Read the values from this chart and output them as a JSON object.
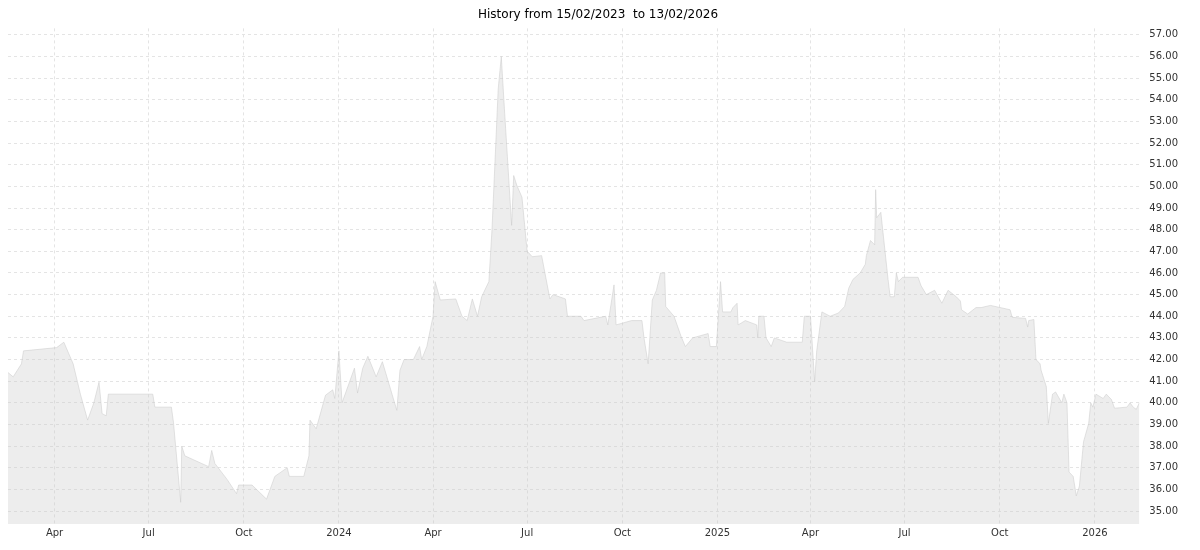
{
  "chart_data": {
    "type": "area",
    "title": "History from 15/02/2023  to 13/02/2026",
    "x": [
      "2023-02-15",
      "2023-02-20",
      "2023-02-28",
      "2023-03-02",
      "2023-04-03",
      "2023-04-10",
      "2023-04-19",
      "2023-04-26",
      "2023-05-03",
      "2023-05-09",
      "2023-05-14",
      "2023-05-17",
      "2023-05-21",
      "2023-05-23",
      "2023-07-05",
      "2023-07-07",
      "2023-07-23",
      "2023-07-25",
      "2023-08-01",
      "2023-08-02",
      "2023-08-05",
      "2023-08-28",
      "2023-08-31",
      "2023-09-03",
      "2023-09-15",
      "2023-09-24",
      "2023-09-26",
      "2023-10-09",
      "2023-10-23",
      "2023-10-31",
      "2023-11-12",
      "2023-11-14",
      "2023-11-28",
      "2023-12-03",
      "2023-12-04",
      "2023-12-10",
      "2023-12-19",
      "2023-12-26",
      "2023-12-28",
      "2024-01-01",
      "2024-01-04",
      "2024-01-16",
      "2024-01-19",
      "2024-01-24",
      "2024-01-29",
      "2024-02-06",
      "2024-02-12",
      "2024-02-26",
      "2024-02-29",
      "2024-03-04",
      "2024-03-13",
      "2024-03-19",
      "2024-03-21",
      "2024-03-26",
      "2024-04-01",
      "2024-04-03",
      "2024-04-08",
      "2024-04-23",
      "2024-04-29",
      "2024-05-04",
      "2024-05-09",
      "2024-05-14",
      "2024-05-18",
      "2024-05-25",
      "2024-05-28",
      "2024-06-03",
      "2024-06-06",
      "2024-06-09",
      "2024-06-16",
      "2024-06-18",
      "2024-06-21",
      "2024-06-26",
      "2024-07-01",
      "2024-07-06",
      "2024-07-15",
      "2024-07-23",
      "2024-07-26",
      "2024-08-07",
      "2024-08-09",
      "2024-08-22",
      "2024-08-25",
      "2024-09-15",
      "2024-09-17",
      "2024-09-23",
      "2024-09-25",
      "2024-10-10",
      "2024-10-20",
      "2024-10-22",
      "2024-10-26",
      "2024-10-30",
      "2024-11-03",
      "2024-11-07",
      "2024-11-11",
      "2024-11-12",
      "2024-11-20",
      "2024-11-27",
      "2024-12-01",
      "2024-12-08",
      "2024-12-23",
      "2024-12-25",
      "2024-12-31",
      "2025-01-04",
      "2025-01-06",
      "2025-01-14",
      "2025-01-16",
      "2025-01-20",
      "2025-01-21",
      "2025-01-28",
      "2025-02-08",
      "2025-02-09",
      "2025-02-10",
      "2025-02-15",
      "2025-02-17",
      "2025-02-22",
      "2025-02-25",
      "2025-03-09",
      "2025-03-24",
      "2025-03-26",
      "2025-04-01",
      "2025-04-05",
      "2025-04-07",
      "2025-04-12",
      "2025-04-20",
      "2025-04-28",
      "2025-05-04",
      "2025-05-08",
      "2025-05-12",
      "2025-05-19",
      "2025-05-24",
      "2025-05-25",
      "2025-05-29",
      "2025-06-02",
      "2025-06-03",
      "2025-06-04",
      "2025-06-08",
      "2025-06-15",
      "2025-06-17",
      "2025-06-21",
      "2025-06-23",
      "2025-06-25",
      "2025-06-29",
      "2025-07-14",
      "2025-07-17",
      "2025-07-22",
      "2025-07-30",
      "2025-08-06",
      "2025-08-12",
      "2025-08-20",
      "2025-08-24",
      "2025-08-25",
      "2025-08-31",
      "2025-09-08",
      "2025-09-13",
      "2025-09-22",
      "2025-10-11",
      "2025-10-13",
      "2025-10-26",
      "2025-10-28",
      "2025-10-29",
      "2025-11-03",
      "2025-11-05",
      "2025-11-09",
      "2025-11-10",
      "2025-11-15",
      "2025-11-17",
      "2025-11-21",
      "2025-11-24",
      "2025-11-30",
      "2025-12-02",
      "2025-12-05",
      "2025-12-07",
      "2025-12-11",
      "2025-12-14",
      "2025-12-17",
      "2025-12-21",
      "2025-12-26",
      "2025-12-28",
      "2025-12-30",
      "2026-01-02",
      "2026-01-09",
      "2026-01-12",
      "2026-01-17",
      "2026-01-20",
      "2026-02-01",
      "2026-02-04",
      "2026-02-07",
      "2026-02-10",
      "2026-02-13"
    ],
    "values": [
      41.4,
      41.2,
      41.8,
      42.4,
      42.55,
      42.8,
      41.8,
      40.4,
      39.2,
      40.0,
      40.95,
      39.5,
      39.4,
      40.4,
      40.4,
      39.8,
      39.8,
      39.1,
      35.4,
      38.0,
      37.55,
      37.05,
      37.8,
      37.2,
      36.45,
      35.8,
      36.2,
      36.2,
      35.55,
      36.6,
      37.0,
      36.6,
      36.6,
      37.55,
      39.2,
      38.8,
      40.35,
      40.6,
      40.2,
      42.4,
      40.0,
      41.6,
      40.45,
      41.6,
      42.15,
      41.2,
      41.9,
      39.65,
      41.5,
      42.0,
      42.0,
      42.6,
      42.0,
      42.6,
      44.0,
      45.6,
      44.75,
      44.8,
      44.0,
      43.8,
      44.8,
      44.0,
      44.9,
      45.6,
      48.0,
      54.5,
      56.0,
      53.6,
      48.2,
      50.5,
      50.05,
      49.5,
      47.0,
      46.75,
      46.8,
      44.8,
      45.0,
      44.8,
      44.0,
      44.0,
      43.8,
      44.0,
      43.6,
      45.45,
      43.6,
      43.8,
      43.8,
      43.0,
      41.8,
      44.75,
      45.2,
      46.0,
      46.0,
      44.45,
      44.0,
      43.05,
      42.6,
      43.0,
      43.2,
      42.6,
      42.6,
      45.6,
      44.2,
      44.2,
      44.4,
      44.6,
      43.6,
      43.8,
      43.6,
      43.0,
      44.0,
      44.0,
      43.0,
      42.6,
      43.0,
      42.8,
      42.8,
      44.0,
      44.0,
      40.97,
      42.4,
      44.2,
      44.0,
      44.15,
      44.45,
      45.3,
      45.7,
      46.0,
      46.4,
      46.8,
      47.5,
      47.3,
      49.85,
      48.55,
      48.8,
      45.7,
      44.9,
      44.9,
      46.0,
      45.6,
      45.8,
      45.8,
      45.4,
      45.0,
      45.2,
      44.6,
      45.2,
      44.9,
      44.7,
      44.3,
      44.1,
      44.4,
      44.4,
      44.5,
      44.3,
      43.95,
      43.9,
      43.5,
      43.8,
      43.85,
      42.0,
      41.8,
      41.5,
      40.75,
      39.05,
      40.4,
      40.5,
      40.0,
      40.4,
      40.0,
      36.8,
      36.6,
      35.7,
      36.15,
      38.2,
      39.05,
      40.0,
      39.8,
      40.4,
      40.2,
      40.4,
      40.15,
      39.75,
      39.8,
      40.0,
      39.8,
      39.7,
      40.0
    ],
    "color": "#c8c8c8",
    "xlim": [
      "2023-02-15",
      "2026-02-13"
    ],
    "xticks": [
      {
        "value": "2023-04-01",
        "label": "Apr"
      },
      {
        "value": "2023-07-01",
        "label": "Jul"
      },
      {
        "value": "2023-10-01",
        "label": "Oct"
      },
      {
        "value": "2024-01-01",
        "label": "2024"
      },
      {
        "value": "2024-04-01",
        "label": "Apr"
      },
      {
        "value": "2024-07-01",
        "label": "Jul"
      },
      {
        "value": "2024-10-01",
        "label": "Oct"
      },
      {
        "value": "2025-01-01",
        "label": "2025"
      },
      {
        "value": "2025-04-01",
        "label": "Apr"
      },
      {
        "value": "2025-07-01",
        "label": "Jul"
      },
      {
        "value": "2025-10-01",
        "label": "Oct"
      },
      {
        "value": "2026-01-01",
        "label": "2026"
      }
    ],
    "ylim": [
      34.4,
      57.3
    ],
    "yticks": [
      {
        "value": 35,
        "label": "35.00"
      },
      {
        "value": 36,
        "label": "36.00"
      },
      {
        "value": 37,
        "label": "37.00"
      },
      {
        "value": 38,
        "label": "38.00"
      },
      {
        "value": 39,
        "label": "39.00"
      },
      {
        "value": 40,
        "label": "40.00"
      },
      {
        "value": 41,
        "label": "41.00"
      },
      {
        "value": 42,
        "label": "42.00"
      },
      {
        "value": 43,
        "label": "43.00"
      },
      {
        "value": 44,
        "label": "44.00"
      },
      {
        "value": 45,
        "label": "45.00"
      },
      {
        "value": 46,
        "label": "46.00"
      },
      {
        "value": 47,
        "label": "47.00"
      },
      {
        "value": 48,
        "label": "48.00"
      },
      {
        "value": 49,
        "label": "49.00"
      },
      {
        "value": 50,
        "label": "50.00"
      },
      {
        "value": 51,
        "label": "51.00"
      },
      {
        "value": 52,
        "label": "52.00"
      },
      {
        "value": 53,
        "label": "53.00"
      },
      {
        "value": 54,
        "label": "54.00"
      },
      {
        "value": 55,
        "label": "55.00"
      },
      {
        "value": 56,
        "label": "56.00"
      },
      {
        "value": 57,
        "label": "57.00"
      }
    ],
    "grid": true,
    "legend": false,
    "marker": "none"
  }
}
